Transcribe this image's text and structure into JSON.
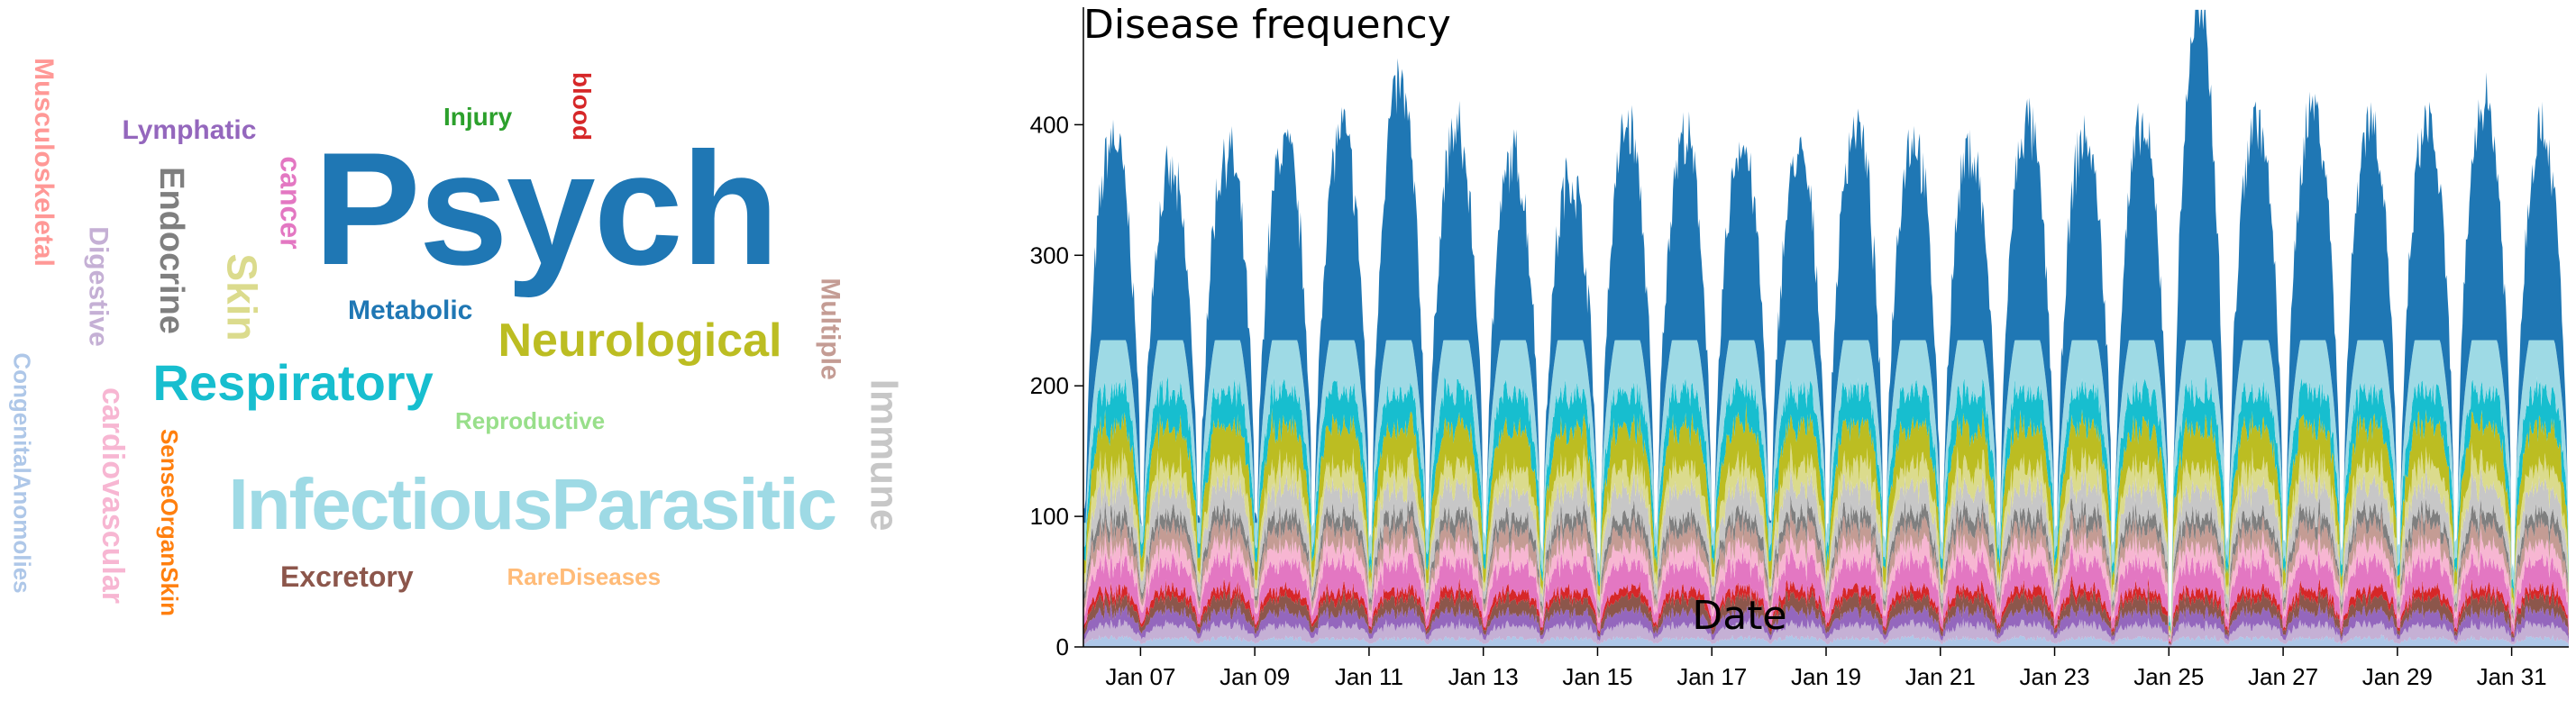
{
  "word_cloud": [
    {
      "text": "Psych",
      "color": "#1f77b4",
      "size": 178,
      "rotate": 0
    },
    {
      "text": "InfectiousParasitic",
      "color": "#9edae5",
      "size": 80,
      "rotate": 0
    },
    {
      "text": "Respiratory",
      "color": "#17becf",
      "size": 56,
      "rotate": 0
    },
    {
      "text": "Neurological",
      "color": "#bcbd22",
      "size": 52,
      "rotate": 0
    },
    {
      "text": "Metabolic",
      "color": "#1f77b4",
      "size": 30,
      "rotate": 0
    },
    {
      "text": "Reproductive",
      "color": "#98df8a",
      "size": 26,
      "rotate": 0
    },
    {
      "text": "Excretory",
      "color": "#8c564b",
      "size": 32,
      "rotate": 0
    },
    {
      "text": "RareDiseases",
      "color": "#ffbb78",
      "size": 26,
      "rotate": 0
    },
    {
      "text": "Lymphatic",
      "color": "#9467bd",
      "size": 30,
      "rotate": 0
    },
    {
      "text": "Injury",
      "color": "#2ca02c",
      "size": 28,
      "rotate": 0
    },
    {
      "text": "blood",
      "color": "#d62728",
      "size": 28,
      "rotate": 90
    },
    {
      "text": "cancer",
      "color": "#e377c2",
      "size": 32,
      "rotate": 90
    },
    {
      "text": "Endocrine",
      "color": "#7f7f7f",
      "size": 38,
      "rotate": 90
    },
    {
      "text": "Skin",
      "color": "#dbdb8d",
      "size": 46,
      "rotate": 90
    },
    {
      "text": "Musculoskeletal",
      "color": "#ff9896",
      "size": 30,
      "rotate": 90
    },
    {
      "text": "Digestive",
      "color": "#c5b0d5",
      "size": 30,
      "rotate": 90
    },
    {
      "text": "CongenitalAnomolies",
      "color": "#aec7e8",
      "size": 26,
      "rotate": 90
    },
    {
      "text": "cardiovascular",
      "color": "#f7b6d2",
      "size": 34,
      "rotate": 90
    },
    {
      "text": "SenseOrganSkin",
      "color": "#ff7f0e",
      "size": 26,
      "rotate": 90
    },
    {
      "text": "Multiple",
      "color": "#c49c94",
      "size": 30,
      "rotate": 90
    },
    {
      "text": "Immune",
      "color": "#c7c7c7",
      "size": 44,
      "rotate": 90
    }
  ],
  "chart_data": {
    "type": "area",
    "stacked": true,
    "title": "Disease frequency",
    "xlabel": "Date",
    "ylabel": "Disease frequency",
    "ylim": [
      0,
      490
    ],
    "yticks": [
      0,
      100,
      200,
      300,
      400
    ],
    "xlim": [
      "2016-01-06",
      "2016-02-01"
    ],
    "xticks": [
      "Jan 07",
      "Jan 09",
      "Jan 11",
      "Jan 13",
      "Jan 15",
      "Jan 17",
      "Jan 19",
      "Jan 21",
      "Jan 23",
      "Jan 25",
      "Jan 27",
      "Jan 29",
      "Jan 31"
    ],
    "x": [
      "2016-01-06",
      "2016-01-07",
      "2016-01-08",
      "2016-01-09",
      "2016-01-10",
      "2016-01-11",
      "2016-01-12",
      "2016-01-13",
      "2016-01-14",
      "2016-01-15",
      "2016-01-16",
      "2016-01-17",
      "2016-01-18",
      "2016-01-19",
      "2016-01-20",
      "2016-01-21",
      "2016-01-22",
      "2016-01-23",
      "2016-01-24",
      "2016-01-25",
      "2016-01-26",
      "2016-01-27",
      "2016-01-28",
      "2016-01-29",
      "2016-01-30",
      "2016-01-31"
    ],
    "daily_peak_total": [
      390,
      360,
      380,
      385,
      395,
      430,
      395,
      375,
      360,
      400,
      390,
      385,
      375,
      400,
      390,
      380,
      400,
      390,
      395,
      490,
      405,
      415,
      405,
      400,
      420,
      400
    ],
    "daily_trough_total": [
      110,
      100,
      95,
      100,
      90,
      85,
      95,
      90,
      80,
      70,
      90,
      85,
      95,
      90,
      85,
      85,
      90,
      90,
      80,
      20,
      80,
      85,
      80,
      75,
      80,
      60
    ],
    "series": [
      {
        "color": "#aec7e8",
        "share": 0.02
      },
      {
        "color": "#c5b0d5",
        "share": 0.03
      },
      {
        "color": "#9467bd",
        "share": 0.03
      },
      {
        "color": "#8c564b",
        "share": 0.03
      },
      {
        "color": "#d62728",
        "share": 0.02
      },
      {
        "color": "#e377c2",
        "share": 0.06
      },
      {
        "color": "#f7b6d2",
        "share": 0.04
      },
      {
        "color": "#c49c94",
        "share": 0.04
      },
      {
        "color": "#7f7f7f",
        "share": 0.03
      },
      {
        "color": "#c7c7c7",
        "share": 0.06
      },
      {
        "color": "#dbdb8d",
        "share": 0.05
      },
      {
        "color": "#bcbd22",
        "share": 0.09
      },
      {
        "color": "#17becf",
        "share": 0.08
      },
      {
        "color": "#9edae5",
        "share": 0.12
      },
      {
        "color": "#1f77b4",
        "share": 0.3
      }
    ]
  }
}
